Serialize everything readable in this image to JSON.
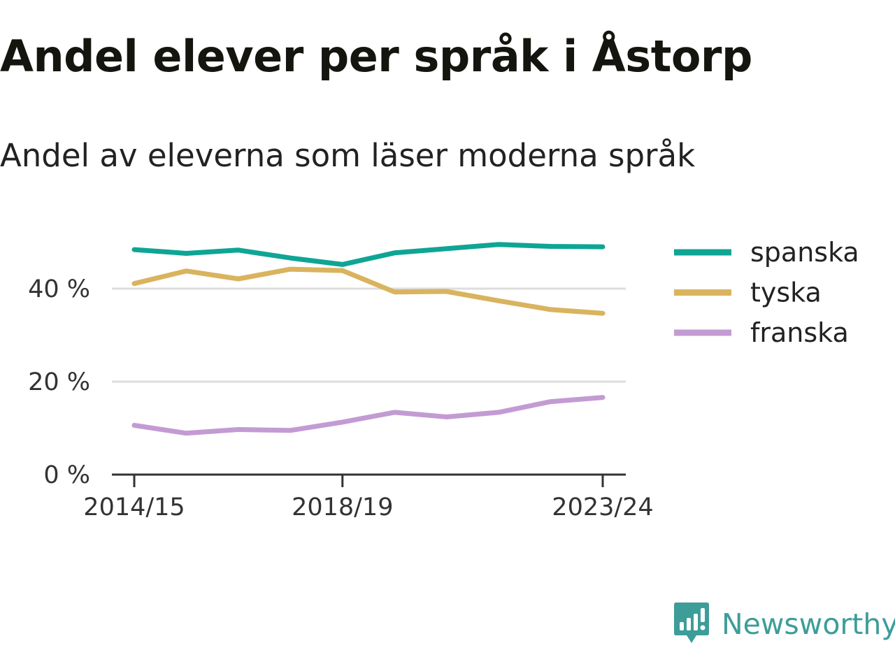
{
  "title": "Andel elever per språk i Åstorp",
  "subtitle": "Andel av eleverna som läser moderna språk",
  "brand": {
    "name": "Newsworthy",
    "icon": "newsworthy-logo-icon",
    "color": "#3d9d99"
  },
  "chart_data": {
    "type": "line",
    "x": [
      "2014/15",
      "2015/16",
      "2016/17",
      "2017/18",
      "2018/19",
      "2019/20",
      "2020/21",
      "2021/22",
      "2022/23",
      "2023/24"
    ],
    "x_tick_labels": [
      "2014/15",
      "2018/19",
      "2023/24"
    ],
    "y_ticks": [
      0,
      20,
      40
    ],
    "y_tick_labels": [
      "0 %",
      "20 %",
      "40 %"
    ],
    "ylim": [
      0,
      50
    ],
    "grid": true,
    "legend_position": "right",
    "series": [
      {
        "name": "spanska",
        "color": "#0fa595",
        "values": [
          48.4,
          47.6,
          48.3,
          46.6,
          45.2,
          47.7,
          48.6,
          49.5,
          49.1,
          49.0
        ]
      },
      {
        "name": "tyska",
        "color": "#d9b35e",
        "values": [
          41.1,
          43.8,
          42.1,
          44.2,
          43.9,
          39.3,
          39.4,
          37.4,
          35.5,
          34.7
        ]
      },
      {
        "name": "franska",
        "color": "#c39bd3",
        "values": [
          10.6,
          8.9,
          9.7,
          9.5,
          11.3,
          13.4,
          12.4,
          13.4,
          15.7,
          16.6
        ]
      }
    ]
  }
}
